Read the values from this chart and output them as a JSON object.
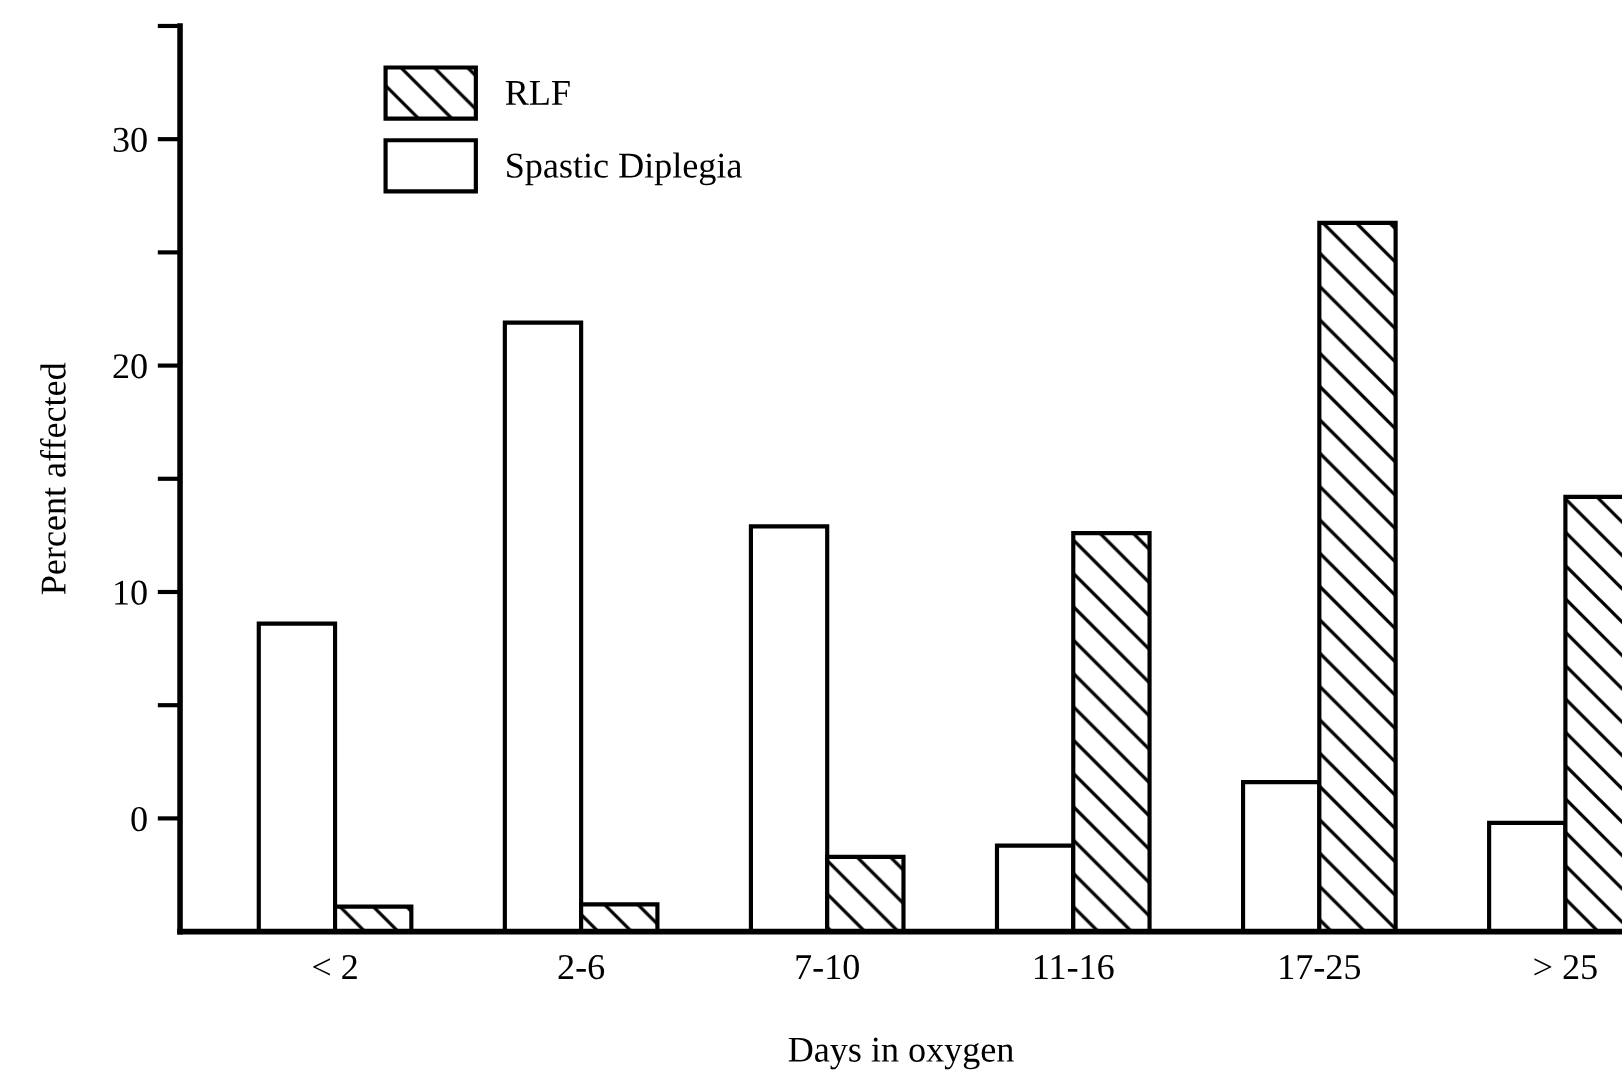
{
  "chart_data": {
    "type": "bar",
    "xlabel": "Days in oxygen",
    "ylabel": "Percent affected",
    "categories": [
      "< 2",
      "2-6",
      "7-10",
      "11-16",
      "17-25",
      "> 25"
    ],
    "series": [
      {
        "name": "Spastic Diplegia",
        "color": "#ffffff",
        "base": [
          -5,
          -5,
          -5,
          -5,
          -5,
          -5
        ],
        "values": [
          13.6,
          26.9,
          17.9,
          3.8,
          6.6,
          4.8
        ]
      },
      {
        "name": "RLF",
        "color": "#000000",
        "base": [
          -5,
          -5,
          -5,
          -5,
          -5,
          -5
        ],
        "values": [
          1.1,
          1.2,
          3.3,
          17.6,
          31.3,
          19.2
        ]
      }
    ],
    "ylim": [
      -5,
      35
    ],
    "yticks": [
      0,
      {
        "value": 5,
        "label": null
      },
      10,
      {
        "value": 15,
        "label": null
      },
      20,
      {
        "value": 25,
        "label": null
      },
      30,
      {
        "value": 35,
        "label": null
      }
    ],
    "grid": false,
    "legend": "top left"
  }
}
